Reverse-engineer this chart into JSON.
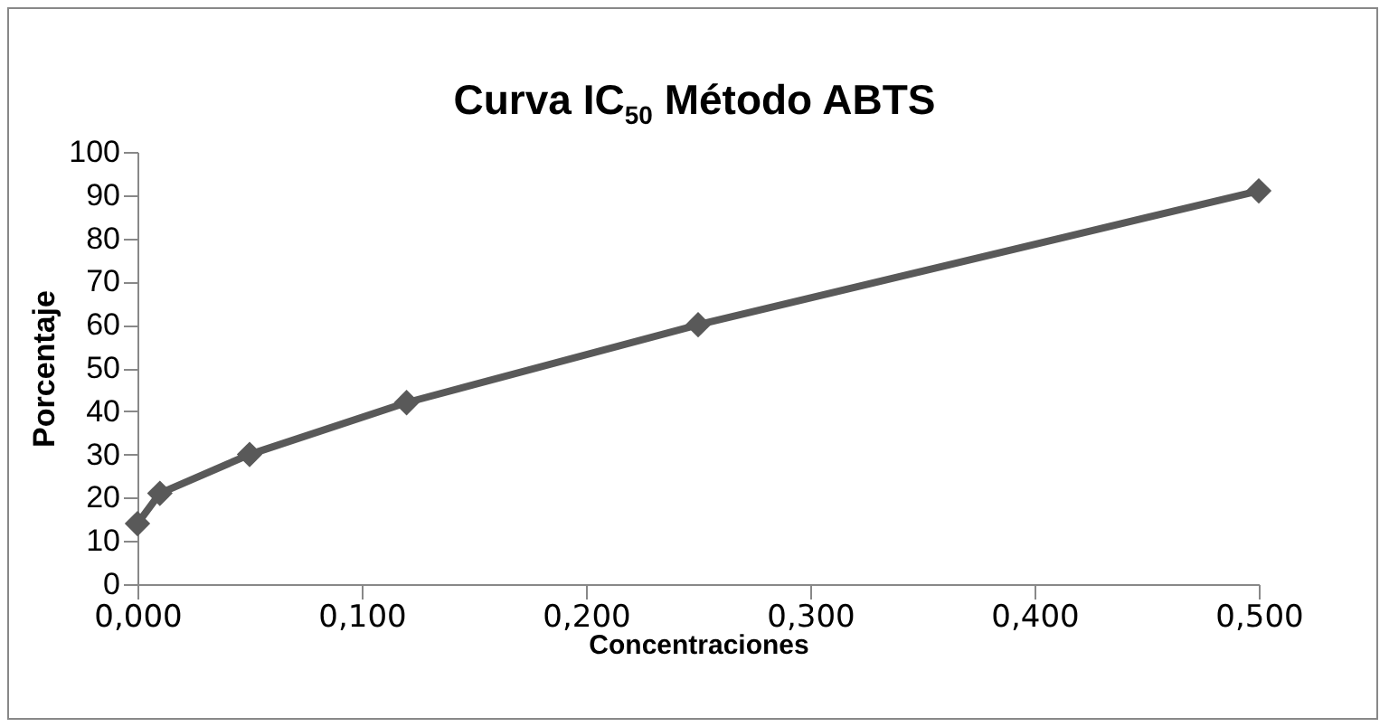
{
  "chart_data": {
    "type": "line",
    "title": "Curva IC$_{50}$  Método ABTS",
    "xlabel": "Concentraciones",
    "ylabel": "Porcentaje",
    "x": [
      0,
      0.01,
      0.05,
      0.12,
      0.25,
      0.5
    ],
    "series": [
      {
        "color": "#595959",
        "values": [
          14,
          21,
          30,
          42,
          60,
          91
        ]
      }
    ],
    "xlim": [
      0,
      0.5
    ],
    "xticks": [
      {
        "value": 0,
        "label": "0,000"
      },
      {
        "value": 0.1,
        "label": "0,100"
      },
      {
        "value": 0.2,
        "label": "0,200"
      },
      {
        "value": 0.3,
        "label": "0,300"
      },
      {
        "value": 0.4,
        "label": "0,400"
      },
      {
        "value": 0.5,
        "label": "0,500"
      }
    ],
    "ylim": [
      0,
      100
    ],
    "yticks": [
      0,
      10,
      20,
      30,
      40,
      50,
      60,
      70,
      80,
      90,
      100
    ],
    "grid": false,
    "legend": false,
    "marker": "diamond",
    "line_style": "solid"
  }
}
